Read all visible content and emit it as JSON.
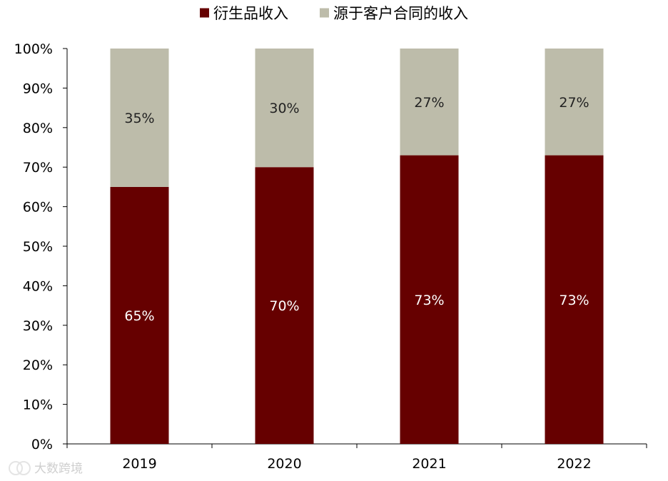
{
  "chart_data": {
    "type": "bar",
    "stacked": true,
    "categories": [
      "2019",
      "2020",
      "2021",
      "2022"
    ],
    "series": [
      {
        "name": "衍生品收入",
        "values": [
          65,
          70,
          73,
          73
        ],
        "labels": [
          "65%",
          "70%",
          "73%",
          "73%"
        ],
        "color": "#660000",
        "label_color": "#ffffff"
      },
      {
        "name": "源于客户合同的收入",
        "values": [
          35,
          30,
          27,
          27
        ],
        "labels": [
          "35%",
          "30%",
          "27%",
          "27%"
        ],
        "color": "#bdbcaa",
        "label_color": "#222222"
      }
    ],
    "y_ticks": [
      "0%",
      "10%",
      "20%",
      "30%",
      "40%",
      "50%",
      "60%",
      "70%",
      "80%",
      "90%",
      "100%"
    ],
    "ylim": [
      0,
      100
    ],
    "legend_position": "top",
    "grid": false
  },
  "watermark": {
    "text": "大数跨境",
    "icon": "brand-logo-icon"
  }
}
